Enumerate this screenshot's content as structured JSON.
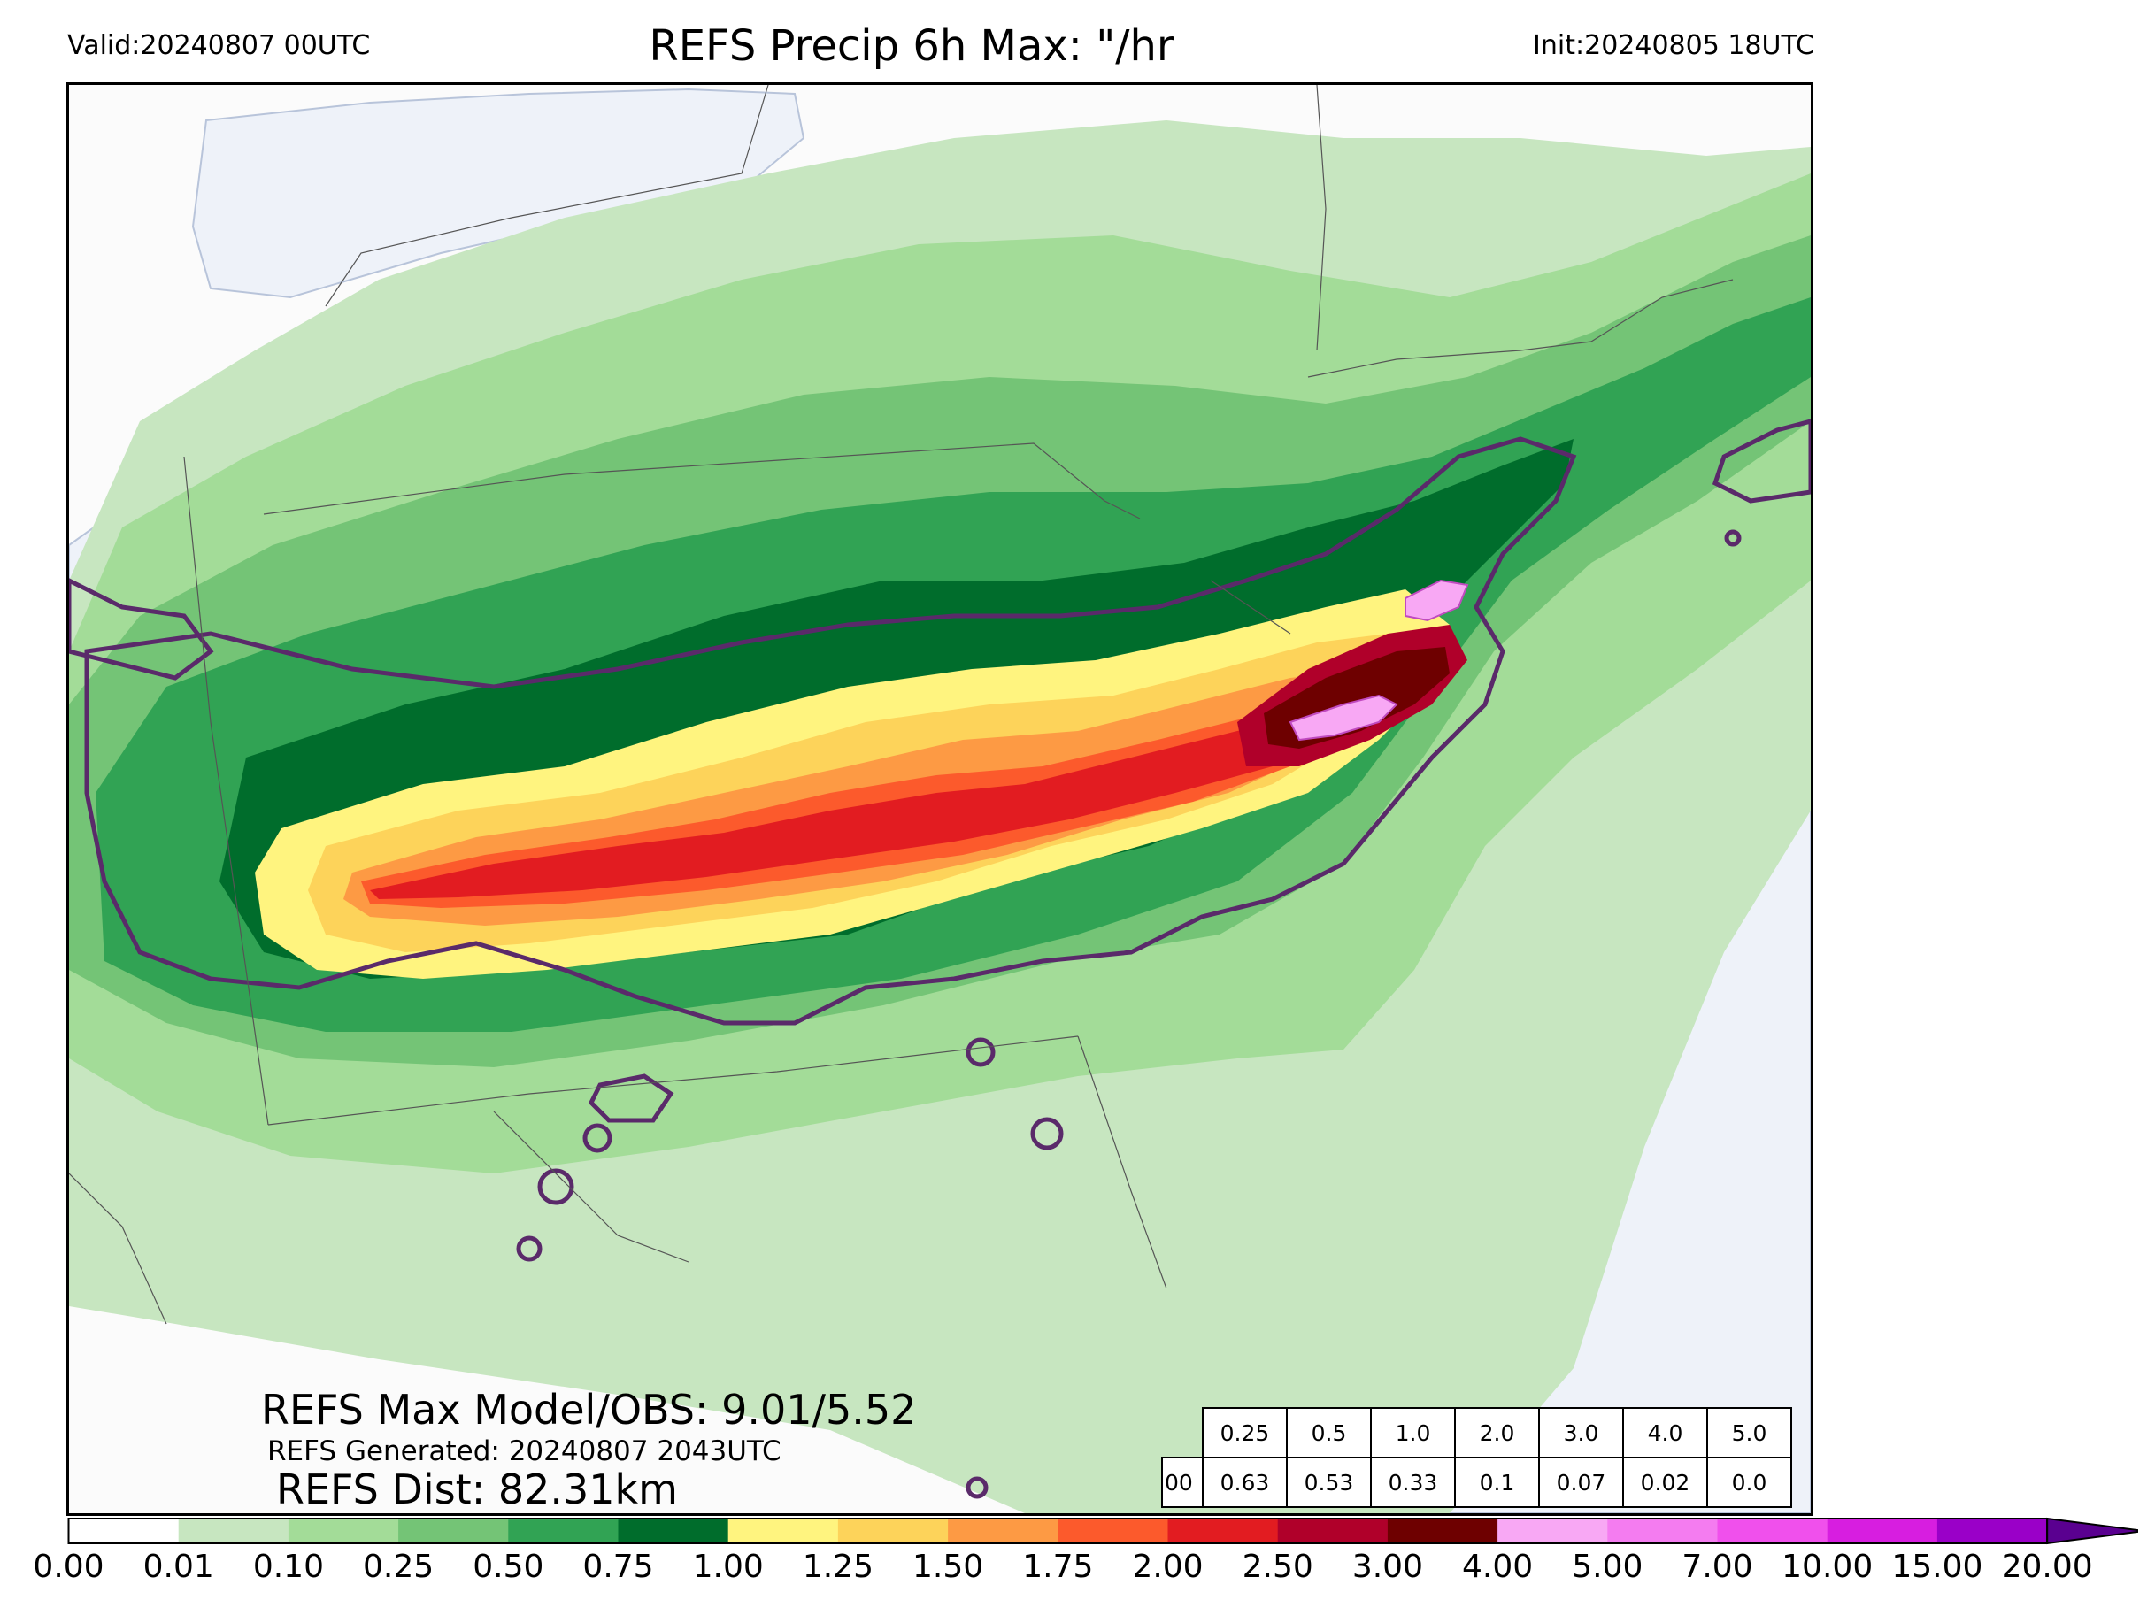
{
  "header": {
    "valid": "Valid:20240807 00UTC",
    "title": "REFS Precip 6h Max: \"/hr",
    "init": "Init:20240805 18UTC"
  },
  "stats": {
    "max_model_obs": "REFS Max Model/OBS: 9.01/5.52",
    "generated": "REFS Generated: 20240807 2043UTC",
    "distance": "REFS Dist: 82.31km"
  },
  "threshold_table": {
    "thresholds": [
      "0.25",
      "0.5",
      "1.0",
      "2.0",
      "3.0",
      "4.0",
      "5.0"
    ],
    "row_label": "00",
    "values": [
      "0.63",
      "0.53",
      "0.33",
      "0.1",
      "0.07",
      "0.02",
      "0.0"
    ]
  },
  "colorbar": {
    "ticks": [
      "0.00",
      "0.01",
      "0.10",
      "0.25",
      "0.50",
      "0.75",
      "1.00",
      "1.25",
      "1.50",
      "1.75",
      "2.00",
      "2.50",
      "3.00",
      "4.00",
      "5.00",
      "7.00",
      "10.00",
      "15.00",
      "20.00"
    ],
    "colors": [
      "#ffffff",
      "#c7e6c0",
      "#a3dc98",
      "#74c476",
      "#31a354",
      "#006d2c",
      "#fff47f",
      "#fdd35a",
      "#fd9a44",
      "#fc5a2c",
      "#e21c21",
      "#b0002a",
      "#6e0000",
      "#f8a8f4",
      "#f47cf0",
      "#f050ec",
      "#d71ee0",
      "#9a00c8"
    ],
    "extend_color": "#5a0090"
  },
  "colors": {
    "land": "#fbfbfb",
    "water": "#eef2f9",
    "contour": "#5a2a6a"
  }
}
